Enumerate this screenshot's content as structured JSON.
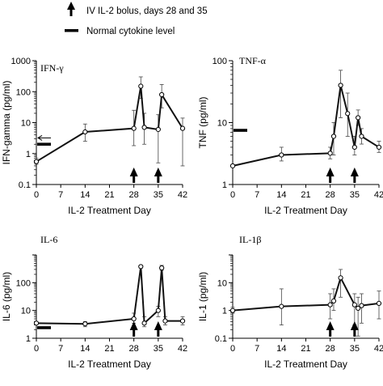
{
  "legend": {
    "bolus_label": "IV IL-2 bolus, days 28 and 35",
    "normal_label": "Normal cytokine level"
  },
  "chart_data": [
    {
      "type": "line",
      "panel_label": "IFN-γ",
      "ylabel": "IFN-gamma (pg/ml)",
      "xlabel": "IL-2 Treatment Day",
      "yscale": "log",
      "ylim": [
        0.1,
        1000
      ],
      "yticks": [
        "0.1",
        "1",
        "10",
        "100",
        "1000"
      ],
      "xlim": [
        0,
        42
      ],
      "xticks": [
        "0",
        "7",
        "14",
        "21",
        "28",
        "35",
        "42"
      ],
      "x": [
        0,
        14,
        28,
        30,
        31,
        35,
        36,
        42
      ],
      "y": [
        0.55,
        5,
        6.5,
        150,
        7,
        6,
        80,
        6.5
      ],
      "yerr_high": [
        0.7,
        9,
        25,
        300,
        20,
        18,
        170,
        14
      ],
      "yerr_low": [
        0.45,
        2.5,
        1.8,
        60,
        2,
        0.5,
        30,
        0.4
      ],
      "normal_level": 2.0,
      "bolus_days": [
        28,
        35
      ],
      "normal_arrow": true
    },
    {
      "type": "line",
      "panel_label": "TNF-α",
      "ylabel": "TNF (pg/ml)",
      "xlabel": "IL-2 Treatment Day",
      "yscale": "log",
      "ylim": [
        1,
        100
      ],
      "yticks": [
        "1",
        "10",
        "100"
      ],
      "xlim": [
        0,
        42
      ],
      "xticks": [
        "0",
        "7",
        "14",
        "21",
        "28",
        "35",
        "42"
      ],
      "x": [
        0,
        14,
        28,
        29,
        31,
        33,
        35,
        36,
        37,
        42
      ],
      "y": [
        2,
        3,
        3.2,
        6,
        40,
        14,
        4,
        12,
        6,
        4
      ],
      "yerr_high": [
        2.1,
        4,
        4,
        10,
        70,
        30,
        6,
        16,
        8,
        5
      ],
      "yerr_low": [
        1.9,
        2.4,
        2.6,
        3,
        12,
        6,
        3,
        9,
        4.5,
        3.3
      ],
      "normal_level": 7.5,
      "bolus_days": [
        28,
        35
      ],
      "normal_arrow": false
    },
    {
      "type": "line",
      "panel_label": "IL-6",
      "ylabel": "IL-6 (pg/ml)",
      "xlabel": "IL-2 Treatment Day",
      "yscale": "log",
      "ylim": [
        1,
        1000
      ],
      "yticks": [
        "1",
        "10",
        "100"
      ],
      "xlim": [
        0,
        42
      ],
      "xticks": [
        "0",
        "7",
        "14",
        "21",
        "28",
        "35",
        "42"
      ],
      "x": [
        0,
        14,
        28,
        30,
        31,
        35,
        36,
        37,
        42
      ],
      "y": [
        3.5,
        3.3,
        5,
        380,
        3.5,
        10,
        340,
        4.2,
        4.2
      ],
      "yerr_high": [
        3.8,
        4,
        8,
        420,
        6,
        14,
        420,
        6,
        6
      ],
      "yerr_low": [
        3.1,
        2.6,
        3.5,
        340,
        2.6,
        6,
        280,
        3,
        3
      ],
      "normal_level": 2.4,
      "bolus_days": [
        28,
        35
      ],
      "normal_arrow": false
    },
    {
      "type": "line",
      "panel_label": "IL-1β",
      "ylabel": "IL-1 (pg/ml)",
      "xlabel": "IL-2 Treatment Day",
      "yscale": "log",
      "ylim": [
        0.1,
        100
      ],
      "yticks": [
        "0.1",
        "1",
        "10"
      ],
      "xlim": [
        0,
        42
      ],
      "xticks": [
        "0",
        "7",
        "14",
        "21",
        "28",
        "35",
        "42"
      ],
      "x": [
        0,
        14,
        28,
        29,
        31,
        35,
        36,
        37,
        42
      ],
      "y": [
        1,
        1.4,
        1.6,
        2.2,
        15,
        1.6,
        1.2,
        1.5,
        1.8
      ],
      "yerr_high": [
        1.3,
        6,
        4,
        6,
        30,
        4,
        3,
        4,
        5
      ],
      "yerr_low": [
        0.8,
        0.3,
        0.5,
        1,
        3,
        0.3,
        0.12,
        0.35,
        0.5
      ],
      "normal_level": null,
      "bolus_days": [
        28,
        35
      ],
      "normal_arrow": false
    }
  ]
}
